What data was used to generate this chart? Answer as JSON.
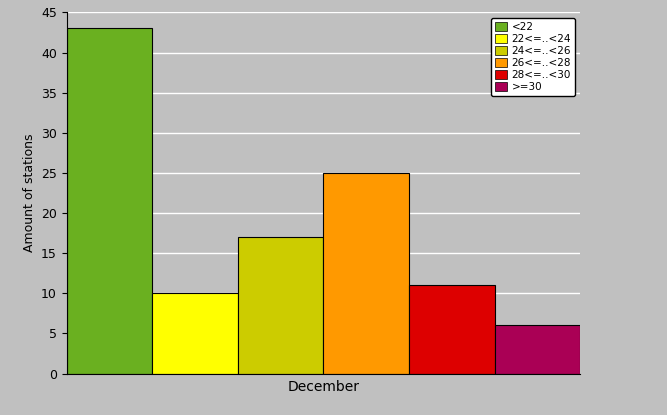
{
  "categories": [
    "<22",
    "22<=..<24",
    "24<=..<26",
    "26<=..<28",
    "28<=..<30",
    ">=30"
  ],
  "values": [
    43,
    10,
    17,
    25,
    11,
    6
  ],
  "colors": [
    "#6ab020",
    "#ffff00",
    "#cccc00",
    "#ff9900",
    "#dd0000",
    "#aa0055"
  ],
  "xlabel": "December",
  "ylabel": "Amount of stations",
  "ylim": [
    0,
    45
  ],
  "yticks": [
    0,
    5,
    10,
    15,
    20,
    25,
    30,
    35,
    40,
    45
  ],
  "background_color": "#c0c0c0",
  "plot_bg_color": "#c0c0c0",
  "bar_edge_color": "#000000",
  "bar_width": 1.0,
  "legend_labels": [
    "<22",
    "22<=..<24",
    "24<=..<26",
    "26<=..<28",
    "28<=..<30",
    ">=30"
  ],
  "grid_color": "#ffffff",
  "grid_linewidth": 1.0
}
